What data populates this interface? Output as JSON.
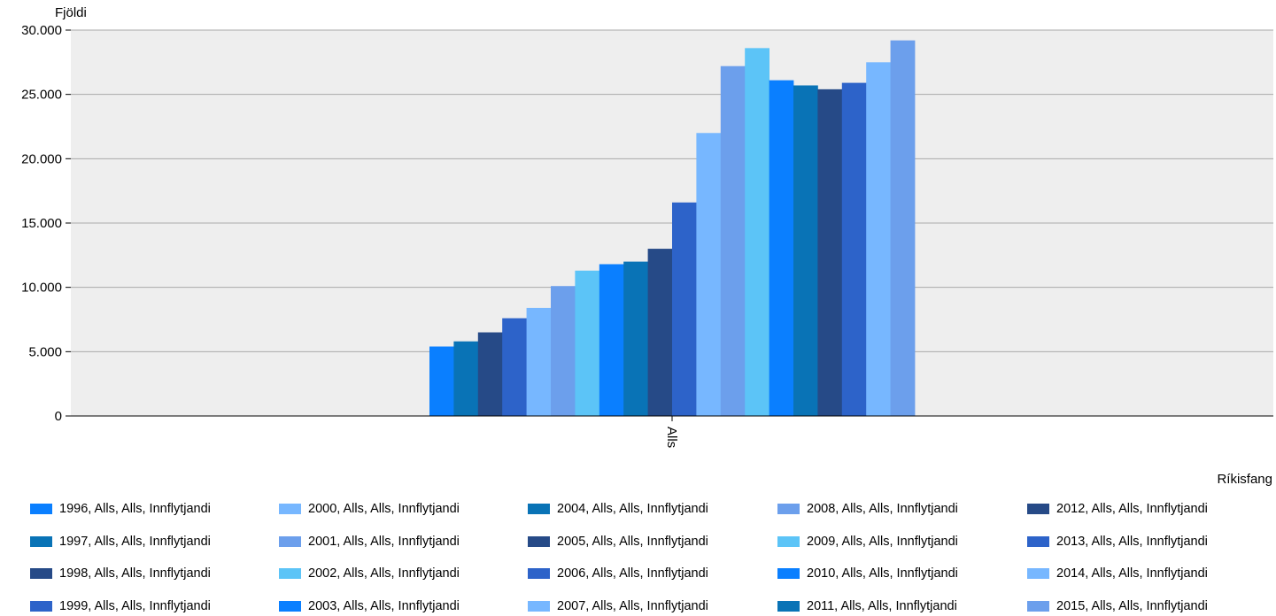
{
  "chart_data": {
    "type": "bar",
    "ylabel": "Fjöldi",
    "xlabel": "Ríkisfang",
    "categories": [
      "Alls"
    ],
    "ylim": [
      0,
      30000
    ],
    "yticks": [
      {
        "value": 0,
        "label": "0"
      },
      {
        "value": 5000,
        "label": "5.000"
      },
      {
        "value": 10000,
        "label": "10.000"
      },
      {
        "value": 15000,
        "label": "15.000"
      },
      {
        "value": 20000,
        "label": "20.000"
      },
      {
        "value": 25000,
        "label": "25.000"
      },
      {
        "value": 30000,
        "label": "30.000"
      }
    ],
    "grid": true,
    "legend_position": "bottom",
    "series": [
      {
        "name": "1996, Alls, Alls, Innflytjandi",
        "values": [
          5400
        ],
        "color": "#0a7fff"
      },
      {
        "name": "1997, Alls, Alls, Innflytjandi",
        "values": [
          5800
        ],
        "color": "#0973b6"
      },
      {
        "name": "1998, Alls, Alls, Innflytjandi",
        "values": [
          6500
        ],
        "color": "#264a87"
      },
      {
        "name": "1999, Alls, Alls, Innflytjandi",
        "values": [
          7600
        ],
        "color": "#2d63c9"
      },
      {
        "name": "2000, Alls, Alls, Innflytjandi",
        "values": [
          8400
        ],
        "color": "#77b7ff"
      },
      {
        "name": "2001, Alls, Alls, Innflytjandi",
        "values": [
          10100
        ],
        "color": "#6c9fec"
      },
      {
        "name": "2002, Alls, Alls, Innflytjandi",
        "values": [
          11300
        ],
        "color": "#5cc4f7"
      },
      {
        "name": "2003, Alls, Alls, Innflytjandi",
        "values": [
          11800
        ],
        "color": "#0a7fff"
      },
      {
        "name": "2004, Alls, Alls, Innflytjandi",
        "values": [
          12000
        ],
        "color": "#0973b6"
      },
      {
        "name": "2005, Alls, Alls, Innflytjandi",
        "values": [
          13000
        ],
        "color": "#264a87"
      },
      {
        "name": "2006, Alls, Alls, Innflytjandi",
        "values": [
          16600
        ],
        "color": "#2d63c9"
      },
      {
        "name": "2007, Alls, Alls, Innflytjandi",
        "values": [
          22000
        ],
        "color": "#77b7ff"
      },
      {
        "name": "2008, Alls, Alls, Innflytjandi",
        "values": [
          27200
        ],
        "color": "#6c9fec"
      },
      {
        "name": "2009, Alls, Alls, Innflytjandi",
        "values": [
          28600
        ],
        "color": "#5cc4f7"
      },
      {
        "name": "2010, Alls, Alls, Innflytjandi",
        "values": [
          26100
        ],
        "color": "#0a7fff"
      },
      {
        "name": "2011, Alls, Alls, Innflytjandi",
        "values": [
          25700
        ],
        "color": "#0973b6"
      },
      {
        "name": "2012, Alls, Alls, Innflytjandi",
        "values": [
          25400
        ],
        "color": "#264a87"
      },
      {
        "name": "2013, Alls, Alls, Innflytjandi",
        "values": [
          25900
        ],
        "color": "#2d63c9"
      },
      {
        "name": "2014, Alls, Alls, Innflytjandi",
        "values": [
          27500
        ],
        "color": "#77b7ff"
      },
      {
        "name": "2015, Alls, Alls, Innflytjandi",
        "values": [
          29200
        ],
        "color": "#6c9fec"
      }
    ]
  }
}
